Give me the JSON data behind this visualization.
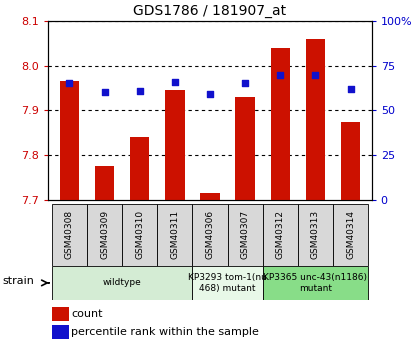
{
  "title": "GDS1786 / 181907_at",
  "samples": [
    "GSM40308",
    "GSM40309",
    "GSM40310",
    "GSM40311",
    "GSM40306",
    "GSM40307",
    "GSM40312",
    "GSM40313",
    "GSM40314"
  ],
  "counts": [
    7.965,
    7.775,
    7.84,
    7.945,
    7.715,
    7.93,
    8.04,
    8.06,
    7.875
  ],
  "percentile": [
    65,
    60,
    61,
    66,
    59,
    65,
    70,
    70,
    62
  ],
  "ylim_left": [
    7.7,
    8.1
  ],
  "ylim_right": [
    0,
    100
  ],
  "yticks_left": [
    7.7,
    7.8,
    7.9,
    8.0,
    8.1
  ],
  "yticks_right": [
    0,
    25,
    50,
    75,
    100
  ],
  "bar_color": "#cc1100",
  "dot_color": "#1111cc",
  "strain_groups": [
    {
      "label": "wildtype",
      "indices": [
        0,
        1,
        2,
        3
      ],
      "color": "#d4ecd4"
    },
    {
      "label": "KP3293 tom-1(nu\n468) mutant",
      "indices": [
        4,
        5
      ],
      "color": "#e8f8e8"
    },
    {
      "label": "KP3365 unc-43(n1186)\nmutant",
      "indices": [
        6,
        7,
        8
      ],
      "color": "#88dd88"
    }
  ],
  "bar_bottom": 7.7,
  "tick_label_color": "#cc0000",
  "right_axis_color": "#0000cc"
}
